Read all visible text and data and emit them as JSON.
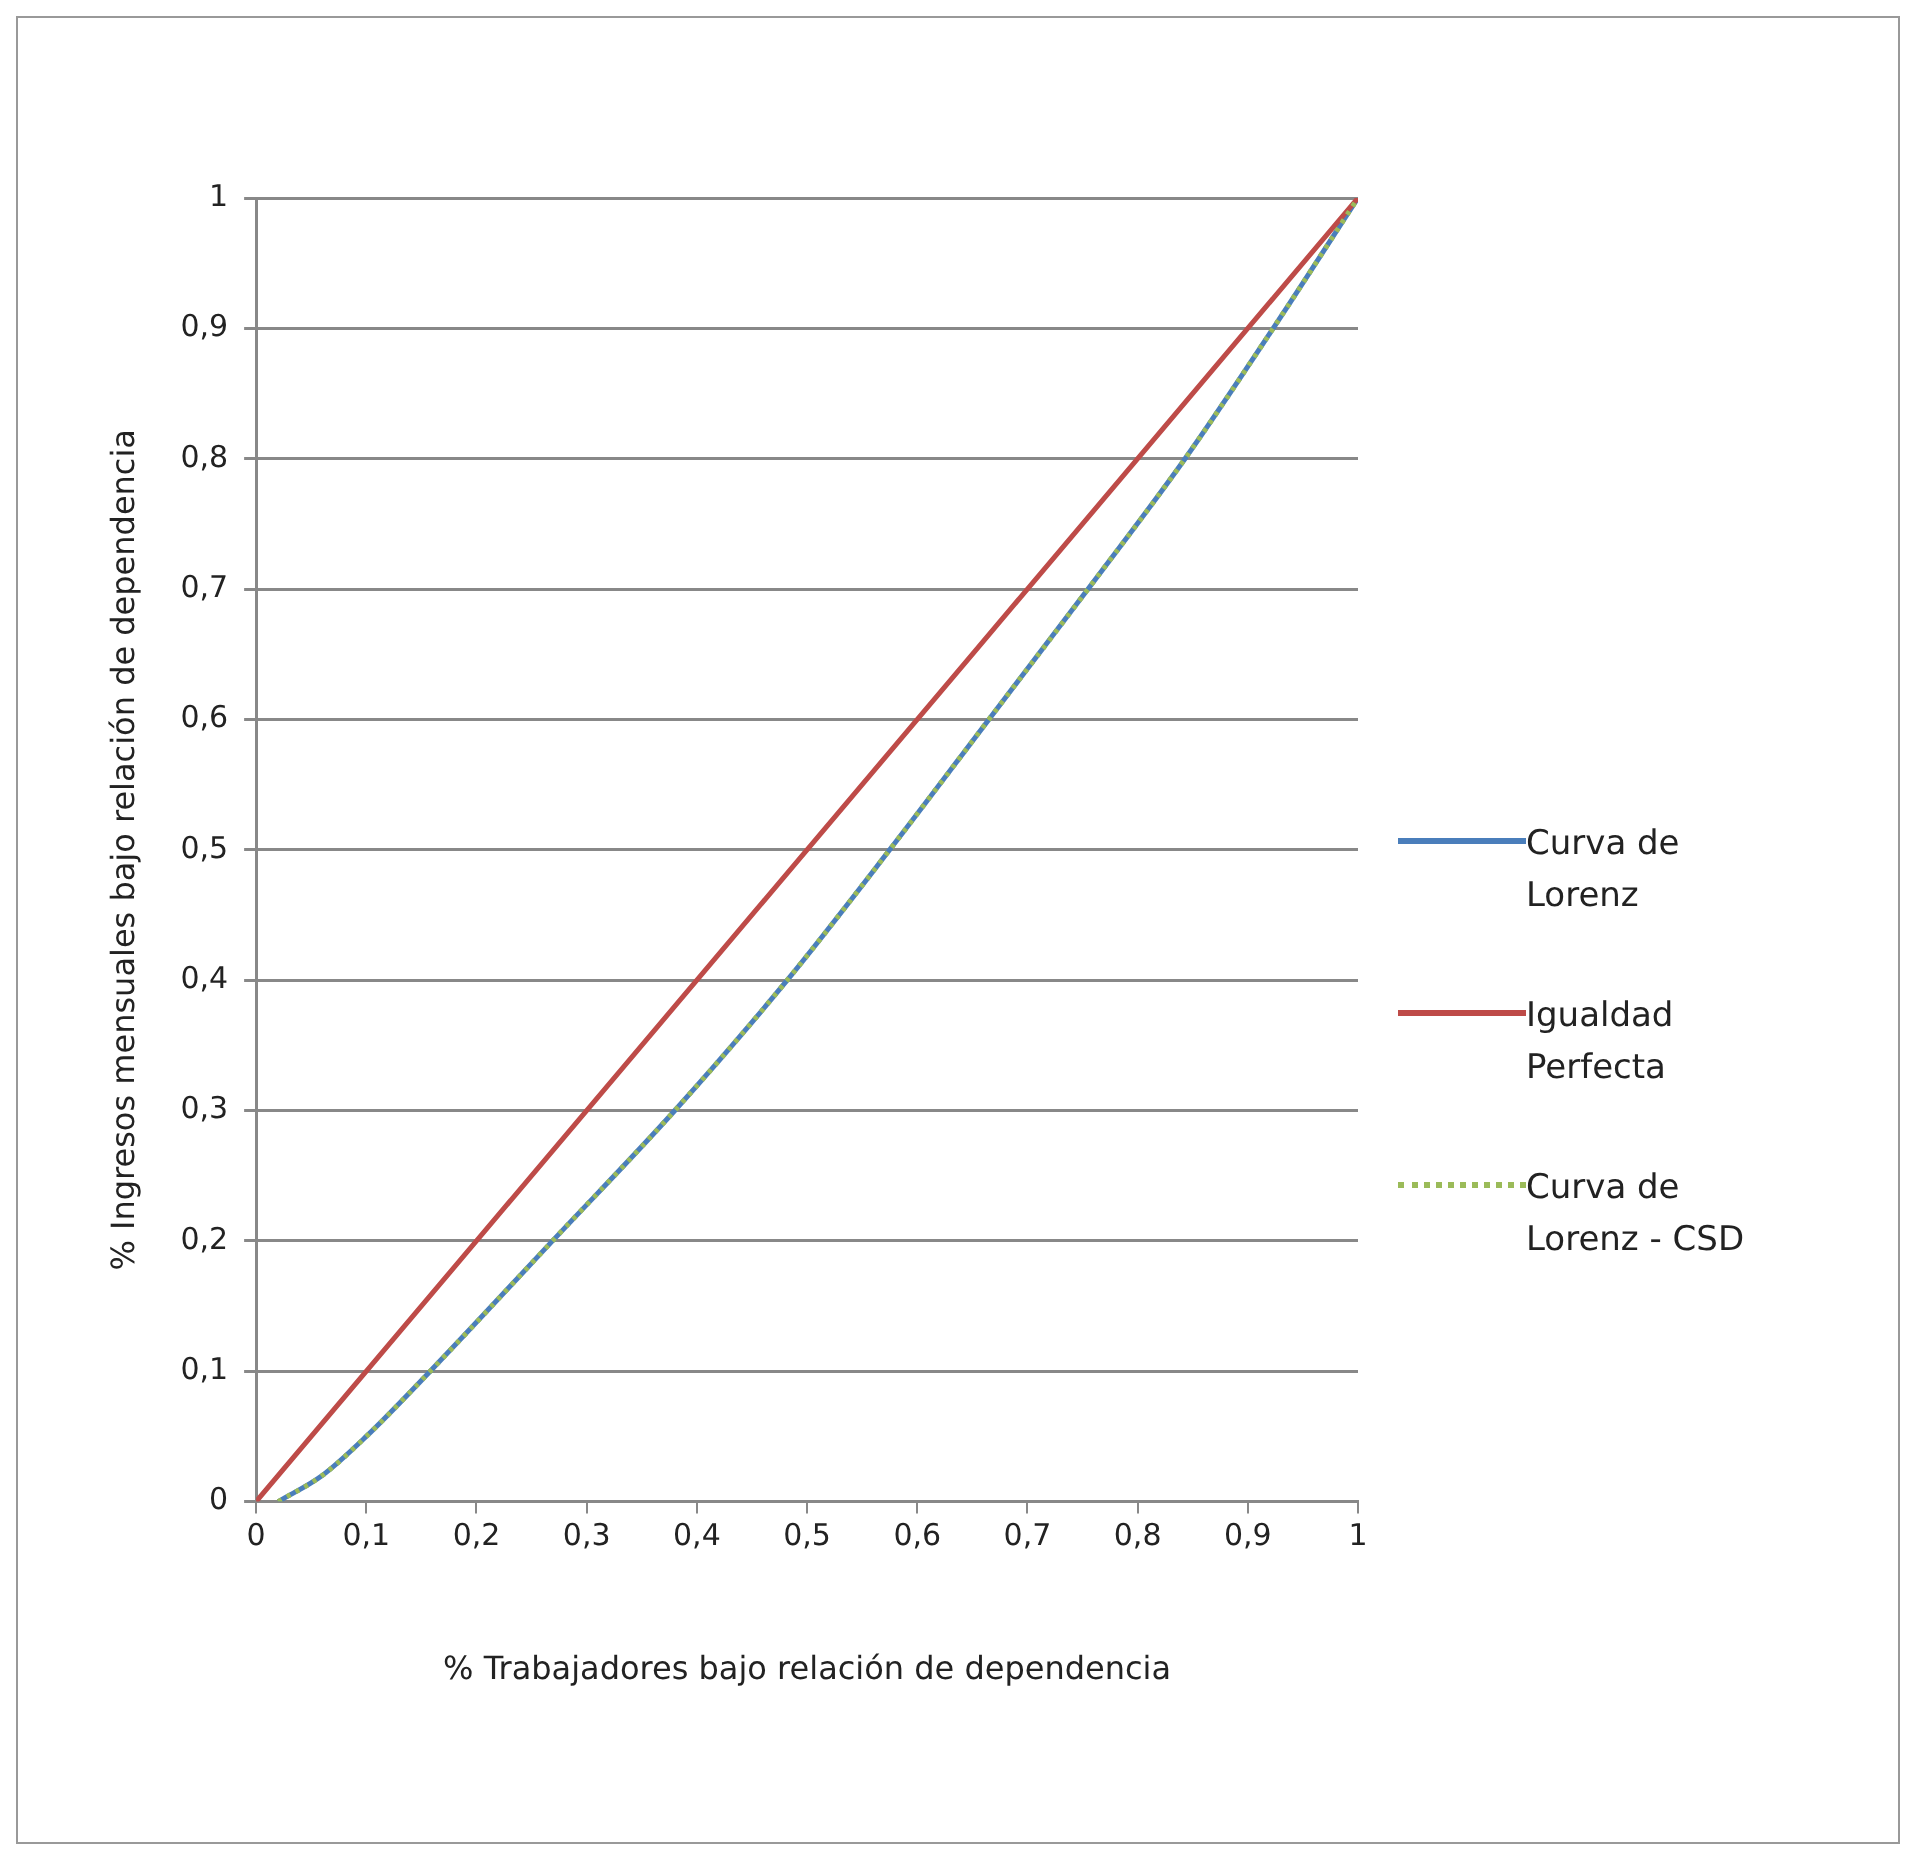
{
  "chart_data": {
    "type": "line",
    "xlabel": "% Trabajadores bajo relación de dependencia",
    "ylabel": "% Ingresos mensuales bajo relación de dependencia",
    "xlim": [
      0,
      1
    ],
    "ylim": [
      0,
      1
    ],
    "xticks": [
      0,
      {
        "value": 0.1,
        "label": "0,1"
      },
      {
        "value": 0.2,
        "label": "0,2"
      },
      {
        "value": 0.3,
        "label": "0,3"
      },
      {
        "value": 0.4,
        "label": "0,4"
      },
      {
        "value": 0.5,
        "label": "0,5"
      },
      {
        "value": 0.6,
        "label": "0,6"
      },
      {
        "value": 0.7,
        "label": "0,7"
      },
      {
        "value": 0.8,
        "label": "0,8"
      },
      {
        "value": 0.9,
        "label": "0,9"
      },
      1
    ],
    "yticks": [
      0,
      {
        "value": 0.1,
        "label": "0,1"
      },
      {
        "value": 0.2,
        "label": "0,2"
      },
      {
        "value": 0.3,
        "label": "0,3"
      },
      {
        "value": 0.4,
        "label": "0,4"
      },
      {
        "value": 0.5,
        "label": "0,5"
      },
      {
        "value": 0.6,
        "label": "0,6"
      },
      {
        "value": 0.7,
        "label": "0,7"
      },
      {
        "value": 0.8,
        "label": "0,8"
      },
      {
        "value": 0.9,
        "label": "0,9"
      },
      1
    ],
    "grid": "y",
    "legend": "right",
    "marker": "none",
    "series": [
      {
        "name": "Curva de Lorenz",
        "color": "#4a7ebb",
        "line_style": "solid",
        "x": [
          0.02,
          0.06,
          0.1,
          0.158,
          0.269,
          0.38,
          0.482,
          0.575,
          0.665,
          0.755,
          0.843,
          0.923,
          1
        ],
        "values": [
          0,
          0.02,
          0.05,
          0.1,
          0.2,
          0.3,
          0.4,
          0.5,
          0.6,
          0.7,
          0.8,
          0.9,
          1
        ]
      },
      {
        "name": "Igualdad Perfecta",
        "color": "#be4b48",
        "line_style": "solid",
        "x": [
          0,
          1
        ],
        "values": [
          0,
          1
        ]
      },
      {
        "name": "Curva de Lorenz - CSD",
        "color": "#9bbb59",
        "line_style": "dotted",
        "x": [
          0.02,
          0.06,
          0.1,
          0.158,
          0.269,
          0.38,
          0.482,
          0.575,
          0.665,
          0.755,
          0.843,
          0.923,
          1
        ],
        "values": [
          0,
          0.02,
          0.05,
          0.1,
          0.2,
          0.3,
          0.4,
          0.5,
          0.6,
          0.7,
          0.8,
          0.9,
          1
        ]
      }
    ]
  }
}
